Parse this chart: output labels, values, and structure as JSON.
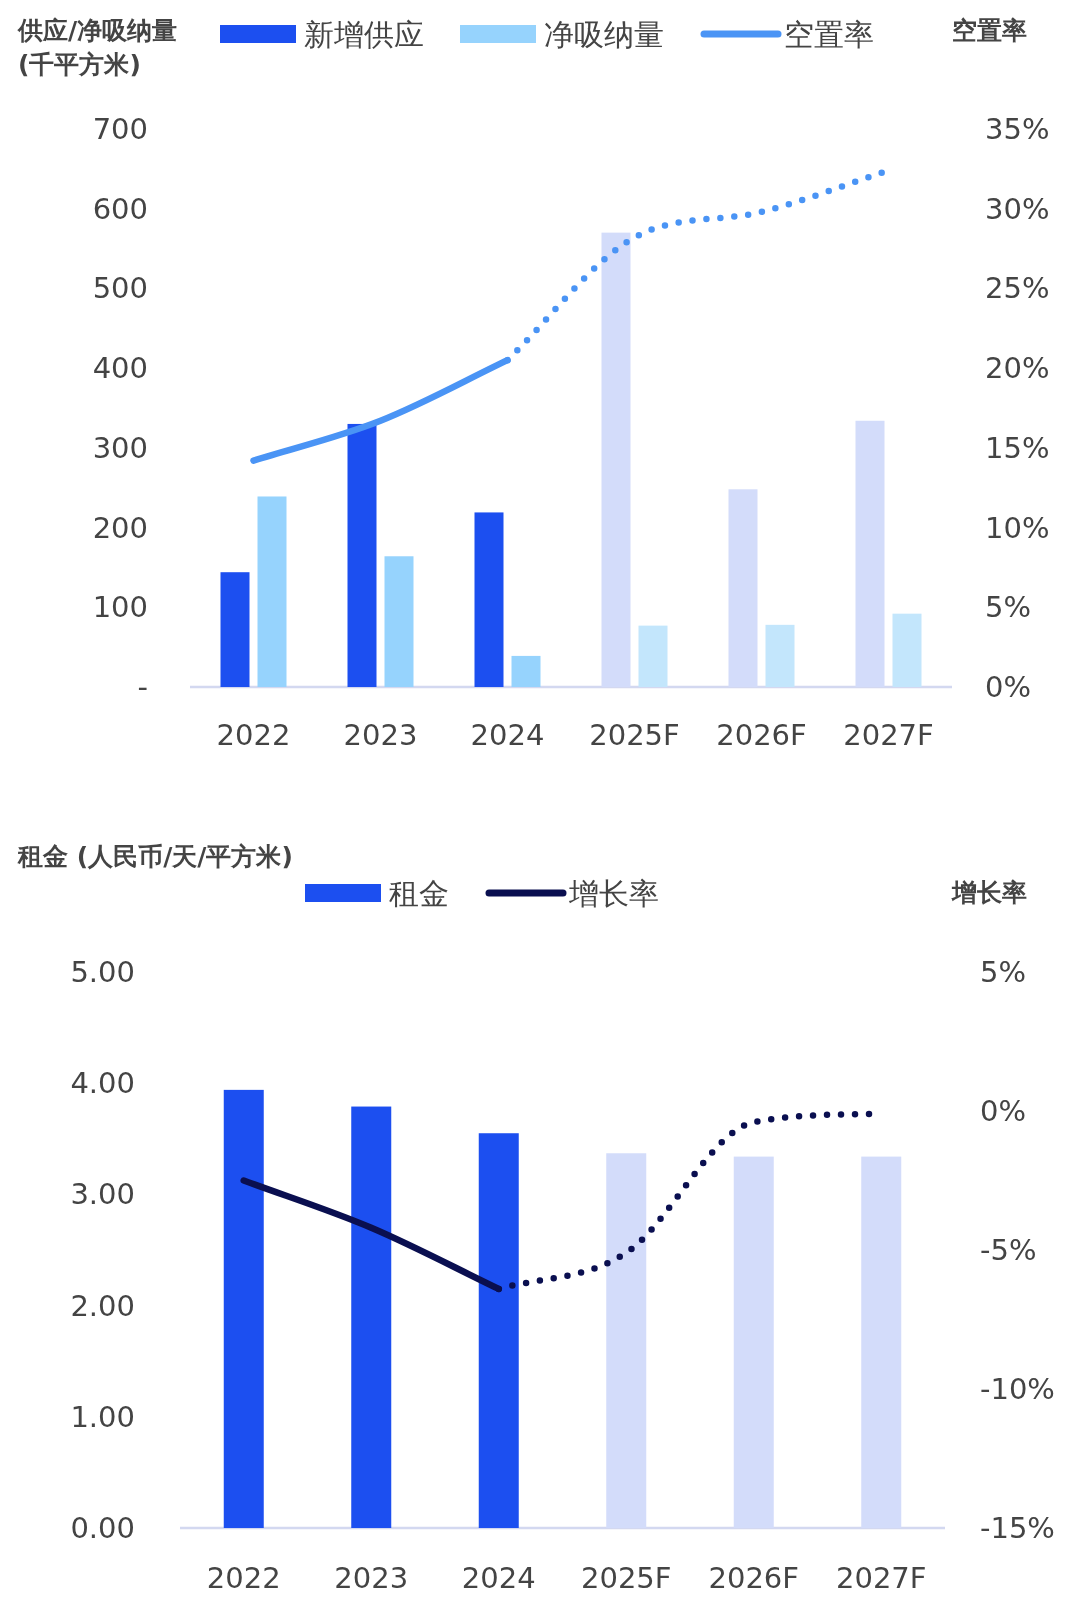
{
  "chart_data": [
    {
      "type": "bar",
      "ylabel": "供应/净吸纳量 (千平方米)",
      "y2label": "空置率",
      "categories": [
        "2022",
        "2023",
        "2024",
        "2025F",
        "2026F",
        "2027F"
      ],
      "legend": "top",
      "ylim": [
        0,
        700
      ],
      "yticks": [
        {
          "value": 0,
          "label": "-"
        },
        100,
        200,
        300,
        400,
        500,
        600,
        700
      ],
      "y2lim": [
        0,
        35
      ],
      "y2ticks": [
        {
          "value": 0,
          "label": "0%"
        },
        {
          "value": 5,
          "label": "5%"
        },
        {
          "value": 10,
          "label": "10%"
        },
        {
          "value": 15,
          "label": "15%"
        },
        {
          "value": 20,
          "label": "20%"
        },
        {
          "value": 25,
          "label": "25%"
        },
        {
          "value": 30,
          "label": "30%"
        },
        {
          "value": 35,
          "label": "35%"
        }
      ],
      "series": [
        {
          "name": "新增供应",
          "type": "bar",
          "color": "#1c4ff0",
          "colors": [
            "#1c4ff0",
            "#1c4ff0",
            "#1c4ff0",
            "#d3dcfa",
            "#d3dcfa",
            "#d3dcfa"
          ],
          "values": [
            144,
            330,
            219,
            570,
            248,
            334
          ]
        },
        {
          "name": "净吸纳量",
          "type": "bar",
          "color": "#96d3fd",
          "colors": [
            "#96d3fd",
            "#96d3fd",
            "#96d3fd",
            "#c3e6fc",
            "#c3e6fc",
            "#c3e6fc"
          ],
          "values": [
            239,
            164,
            39,
            77,
            78,
            92
          ]
        },
        {
          "name": "空置率",
          "type": "line",
          "axis": "y2",
          "color": "#4a94f5",
          "line_style": "solid",
          "values": [
            14.2,
            16.7,
            20.5,
            null,
            null,
            null
          ]
        },
        {
          "type": "line",
          "axis": "y2",
          "color": "#4a94f5",
          "line_style": "dotted",
          "values": [
            null,
            null,
            20.5,
            28.2,
            29.8,
            32.4
          ]
        }
      ]
    },
    {
      "type": "bar",
      "ylabel": "租金 (人民币/天/平方米)",
      "y2label": "增长率",
      "categories": [
        "2022",
        "2023",
        "2024",
        "2025F",
        "2026F",
        "2027F"
      ],
      "legend": "top",
      "ylim": [
        0,
        5
      ],
      "yticks": [
        {
          "value": 0,
          "label": "0.00"
        },
        {
          "value": 1,
          "label": "1.00"
        },
        {
          "value": 2,
          "label": "2.00"
        },
        {
          "value": 3,
          "label": "3.00"
        },
        {
          "value": 4,
          "label": "4.00"
        },
        {
          "value": 5,
          "label": "5.00"
        }
      ],
      "y2lim": [
        -15,
        5
      ],
      "y2ticks": [
        {
          "value": 5,
          "label": "5%"
        },
        {
          "value": 0,
          "label": "0%"
        },
        {
          "value": -5,
          "label": "-5%"
        },
        {
          "value": -10,
          "label": "-10%"
        },
        {
          "value": -15,
          "label": "-15%"
        }
      ],
      "series": [
        {
          "name": "租金",
          "type": "bar",
          "color": "#1c4ff0",
          "colors": [
            "#1c4ff0",
            "#1c4ff0",
            "#1c4ff0",
            "#d3dcfa",
            "#d3dcfa",
            "#d3dcfa"
          ],
          "values": [
            3.94,
            3.79,
            3.55,
            3.37,
            3.34,
            3.34
          ]
        },
        {
          "name": "增长率",
          "type": "line",
          "axis": "y2",
          "color": "#0a0f50",
          "line_style": "solid",
          "values": [
            -2.5,
            -4.2,
            -6.4,
            null,
            null,
            null
          ]
        },
        {
          "type": "line",
          "axis": "y2",
          "color": "#0a0f50",
          "line_style": "dotted",
          "values": [
            null,
            null,
            -6.4,
            -5.1,
            -0.4,
            -0.1
          ]
        }
      ]
    }
  ]
}
